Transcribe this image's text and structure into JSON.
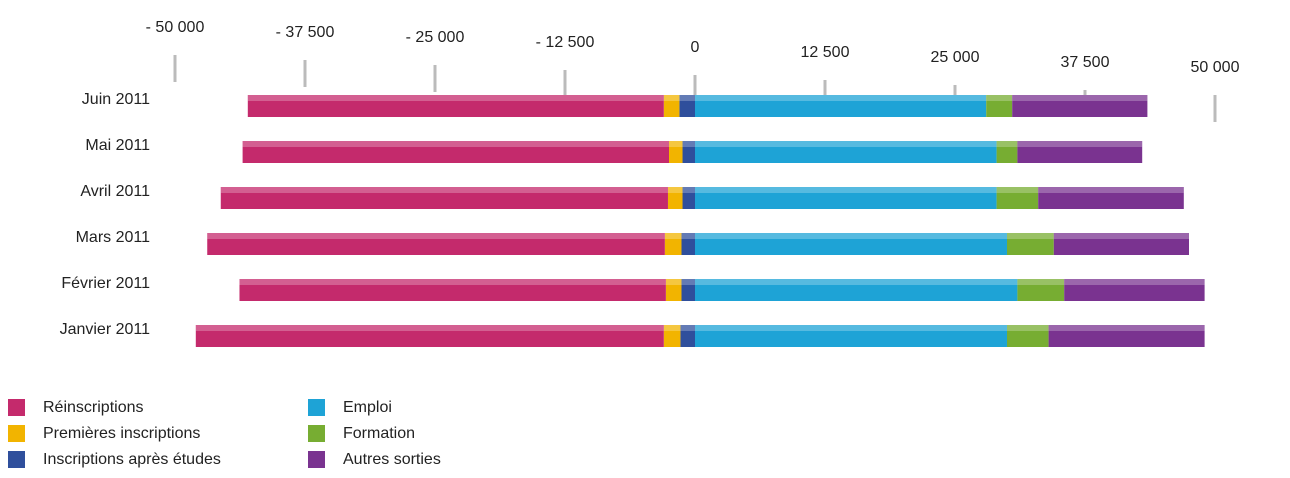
{
  "chart_data": {
    "type": "bar",
    "orientation": "horizontal",
    "stacked": true,
    "categories": [
      "Juin 2011",
      "Mai 2011",
      "Avril 2011",
      "Mars 2011",
      "Février 2011",
      "Janvier 2011"
    ],
    "series": [
      {
        "name": "Réinscriptions",
        "color": "#c42a6c",
        "values": [
          -40000,
          -41000,
          -43000,
          -44000,
          -41000,
          -45000
        ]
      },
      {
        "name": "Premières inscriptions",
        "color": "#f2b400",
        "values": [
          -1500,
          -1300,
          -1400,
          -1600,
          -1500,
          -1600
        ]
      },
      {
        "name": "Inscriptions après études",
        "color": "#2f4f9c",
        "values": [
          -1500,
          -1200,
          -1200,
          -1300,
          -1300,
          -1400
        ]
      },
      {
        "name": "Emploi",
        "color": "#1ea3d6",
        "values": [
          28000,
          29000,
          29000,
          30000,
          31000,
          30000
        ]
      },
      {
        "name": "Formation",
        "color": "#77ad32",
        "values": [
          2500,
          2000,
          4000,
          4500,
          4500,
          4000
        ]
      },
      {
        "name": "Autres sorties",
        "color": "#7a3390",
        "values": [
          13000,
          12000,
          14000,
          13000,
          13500,
          15000
        ]
      }
    ],
    "xlim": [
      -50000,
      50000
    ],
    "xticks": [
      {
        "value": -50000,
        "label": "- 50 000"
      },
      {
        "value": -37500,
        "label": "- 37 500"
      },
      {
        "value": -25000,
        "label": "- 25 000"
      },
      {
        "value": -12500,
        "label": "- 12 500"
      },
      0,
      {
        "value": 12500,
        "label": "12 500"
      },
      {
        "value": 25000,
        "label": "25 000"
      },
      {
        "value": 37500,
        "label": "37 500"
      },
      {
        "value": 50000,
        "label": "50 000"
      }
    ],
    "grid": true
  }
}
